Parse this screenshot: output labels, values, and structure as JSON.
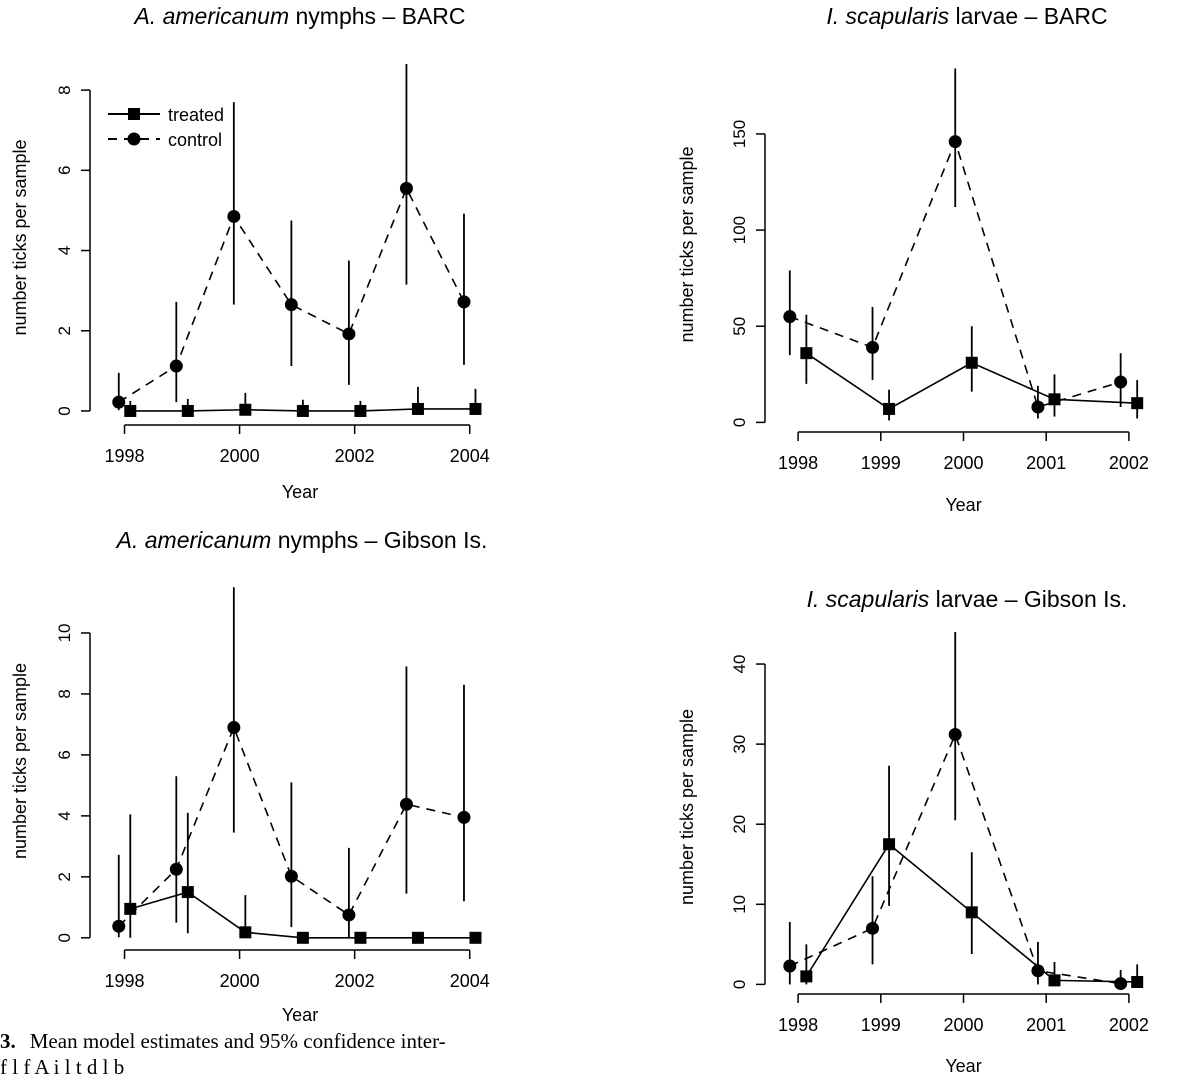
{
  "legend": {
    "treated_label": "treated",
    "control_label": "control"
  },
  "caption": {
    "number": "3.",
    "line1": "Mean model estimates and 95% confidence inter-",
    "line2": "f        l      f A        i                  l         t  d  l     b"
  },
  "chart_data": [
    {
      "type": "line",
      "title_italic": "A. americanum",
      "title_rest": "nymphs – BARC",
      "xlabel": "Year",
      "ylabel": "number ticks per sample",
      "xlim": [
        1997.4,
        2004.7
      ],
      "ylim": [
        -0.35,
        9.0
      ],
      "xticks": [
        1998,
        2000,
        2002,
        2004
      ],
      "yticks": [
        0,
        2,
        4,
        6,
        8
      ],
      "legend": "top-left",
      "series": [
        {
          "name": "treated",
          "style": "solid",
          "marker": "square",
          "x": [
            1998.1,
            1999.1,
            2000.1,
            2001.1,
            2002.1,
            2003.1,
            2004.1
          ],
          "y": [
            0.0,
            0.0,
            0.03,
            0.0,
            0.0,
            0.05,
            0.05
          ],
          "lower": [
            0,
            0,
            0,
            0,
            0,
            0,
            0
          ],
          "upper": [
            0.25,
            0.3,
            0.45,
            0.28,
            0.25,
            0.6,
            0.55
          ]
        },
        {
          "name": "control",
          "style": "dashed",
          "marker": "circle",
          "x": [
            1997.9,
            1998.9,
            1999.9,
            2000.9,
            2001.9,
            2002.9,
            2003.9
          ],
          "y": [
            0.22,
            1.12,
            4.85,
            2.65,
            1.92,
            5.55,
            2.72
          ],
          "lower": [
            0.02,
            0.22,
            2.65,
            1.12,
            0.65,
            3.15,
            1.15
          ],
          "upper": [
            0.95,
            2.72,
            7.7,
            4.75,
            3.75,
            8.65,
            4.92
          ]
        }
      ]
    },
    {
      "type": "line",
      "title_italic": "A. americanum",
      "title_rest": "nymphs – Gibson Is.",
      "xlabel": "Year",
      "ylabel": "number ticks per sample",
      "xlim": [
        1997.4,
        2004.7
      ],
      "ylim": [
        -0.4,
        12.0
      ],
      "xticks": [
        1998,
        2000,
        2002,
        2004
      ],
      "yticks": [
        0,
        2,
        4,
        6,
        8,
        10
      ],
      "series": [
        {
          "name": "treated",
          "style": "solid",
          "marker": "square",
          "x": [
            1998.1,
            1999.1,
            2000.1,
            2001.1,
            2002.1,
            2003.1,
            2004.1
          ],
          "y": [
            0.95,
            1.5,
            0.18,
            0.0,
            0.0,
            0.0,
            0.0
          ],
          "lower": [
            0,
            0.15,
            0,
            0,
            0,
            0,
            0
          ],
          "upper": [
            4.05,
            4.1,
            1.4,
            0,
            0,
            0,
            0
          ]
        },
        {
          "name": "control",
          "style": "dashed",
          "marker": "circle",
          "x": [
            1997.9,
            1998.9,
            1999.9,
            2000.9,
            2001.9,
            2002.9,
            2003.9
          ],
          "y": [
            0.38,
            2.25,
            6.9,
            2.02,
            0.75,
            4.38,
            3.95
          ],
          "lower": [
            0.02,
            0.5,
            3.45,
            0.35,
            0.02,
            1.45,
            1.2
          ],
          "upper": [
            2.72,
            5.3,
            11.5,
            5.1,
            2.95,
            8.9,
            8.3
          ]
        }
      ]
    },
    {
      "type": "line",
      "title_italic": "I. scapularis",
      "title_rest": "larvae – BARC",
      "xlabel": "Year",
      "ylabel": "number ticks per sample",
      "xlim": [
        1997.6,
        2002.4
      ],
      "ylim": [
        -5,
        190
      ],
      "xticks": [
        1998,
        1999,
        2000,
        2001,
        2002
      ],
      "yticks": [
        0,
        50,
        100,
        150
      ],
      "series": [
        {
          "name": "treated",
          "style": "solid",
          "marker": "square",
          "x": [
            1998.1,
            1999.1,
            2000.1,
            2001.1,
            2002.1
          ],
          "y": [
            36,
            7,
            31,
            12,
            10
          ],
          "lower": [
            20,
            1,
            16,
            3,
            2
          ],
          "upper": [
            56,
            17,
            50,
            25,
            22
          ]
        },
        {
          "name": "control",
          "style": "dashed",
          "marker": "circle",
          "x": [
            1997.9,
            1998.9,
            1999.9,
            2000.9,
            2001.9
          ],
          "y": [
            55,
            39,
            146,
            8,
            21
          ],
          "lower": [
            35,
            22,
            112,
            2,
            8
          ],
          "upper": [
            79,
            60,
            184,
            19,
            36
          ]
        }
      ]
    },
    {
      "type": "line",
      "title_italic": "I. scapularis",
      "title_rest": "larvae – Gibson Is.",
      "xlabel": "Year",
      "ylabel": "number ticks per sample",
      "xlim": [
        1997.6,
        2002.4
      ],
      "ylim": [
        -1.2,
        45.5
      ],
      "xticks": [
        1998,
        1999,
        2000,
        2001,
        2002
      ],
      "yticks": [
        0,
        10,
        20,
        30,
        40
      ],
      "series": [
        {
          "name": "treated",
          "style": "solid",
          "marker": "square",
          "x": [
            1998.1,
            1999.1,
            2000.1,
            2001.1,
            2002.1
          ],
          "y": [
            1.0,
            17.5,
            9.0,
            0.5,
            0.3
          ],
          "lower": [
            0,
            9.8,
            3.8,
            0,
            0
          ],
          "upper": [
            5.0,
            27.3,
            16.5,
            2.8,
            2.5
          ]
        },
        {
          "name": "control",
          "style": "dashed",
          "marker": "circle",
          "x": [
            1997.9,
            1998.9,
            1999.9,
            2000.9,
            2001.9
          ],
          "y": [
            2.3,
            7.0,
            31.2,
            1.7,
            0.1
          ],
          "lower": [
            0,
            2.5,
            20.5,
            0,
            0
          ],
          "upper": [
            7.8,
            13.5,
            44.0,
            5.3,
            1.8
          ]
        }
      ]
    }
  ]
}
